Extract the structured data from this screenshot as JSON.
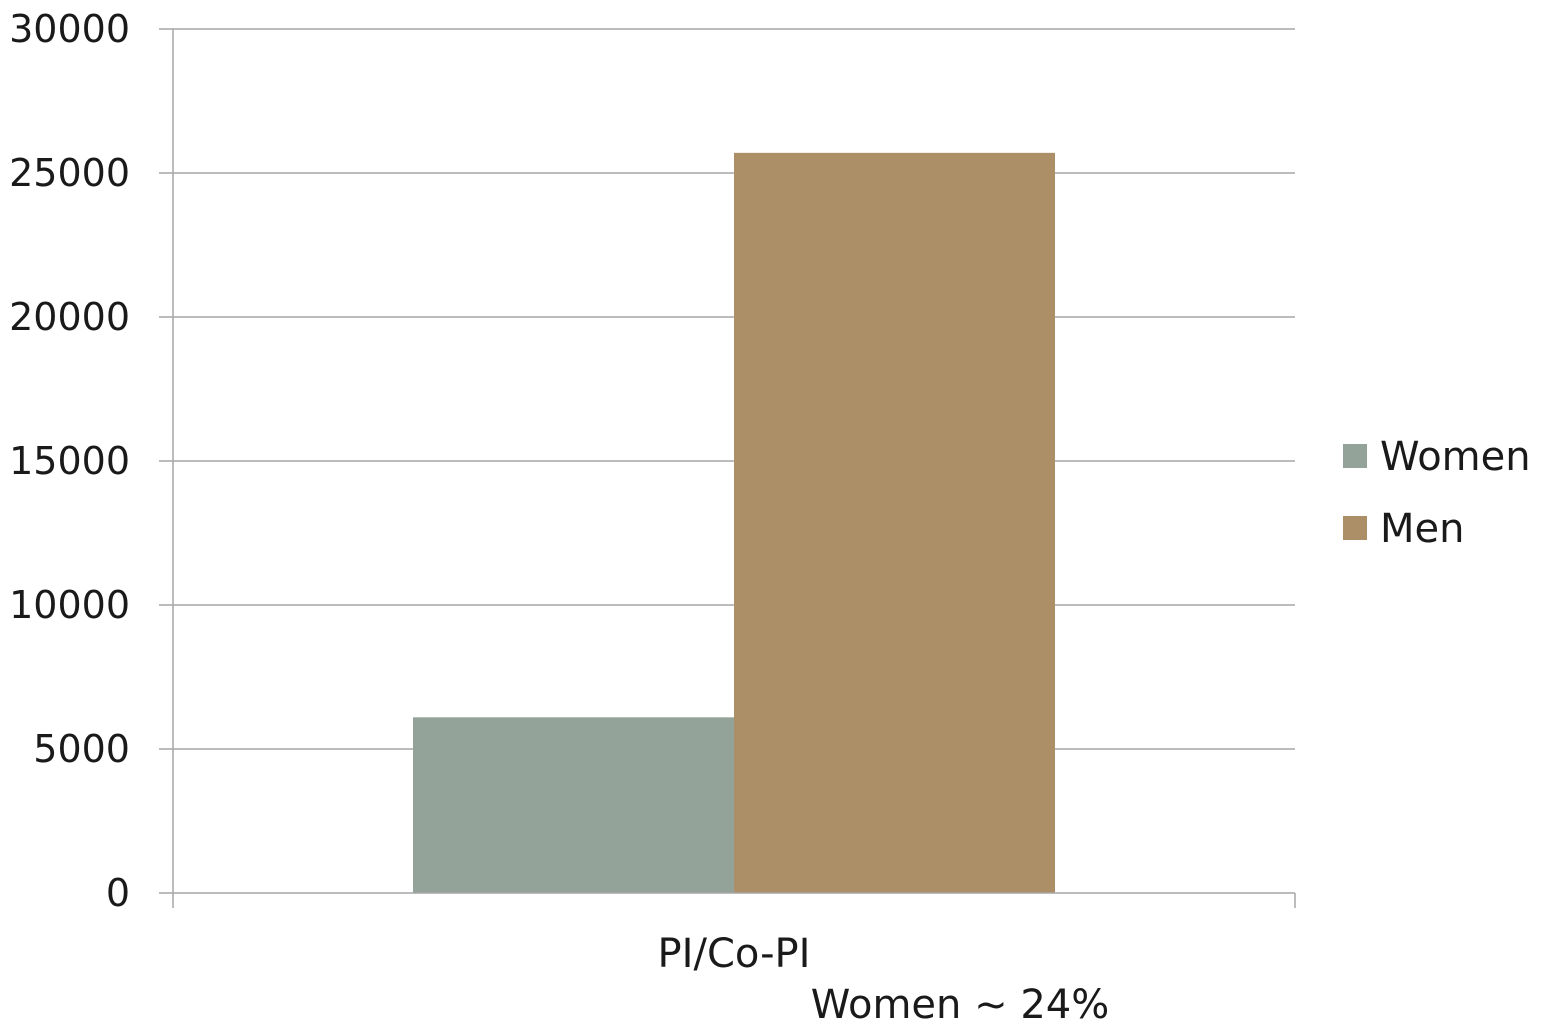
{
  "chart_data": {
    "type": "bar",
    "categories": [
      "PI/Co-PI"
    ],
    "series": [
      {
        "name": "Women",
        "values": [
          6100
        ],
        "color": "#94a399"
      },
      {
        "name": "Men",
        "values": [
          25700
        ],
        "color": "#ac8e67"
      }
    ],
    "ylim": [
      0,
      30000
    ],
    "yticks": [
      0,
      5000,
      10000,
      15000,
      20000,
      25000,
      30000
    ],
    "ytick_labels": [
      "0",
      "5000",
      "10000",
      "15000",
      "20000",
      "25000",
      "30000"
    ],
    "grid": true,
    "legend_position": "right",
    "annotation": "Women ~ 24%",
    "axis_color": "#a6a6a6"
  }
}
